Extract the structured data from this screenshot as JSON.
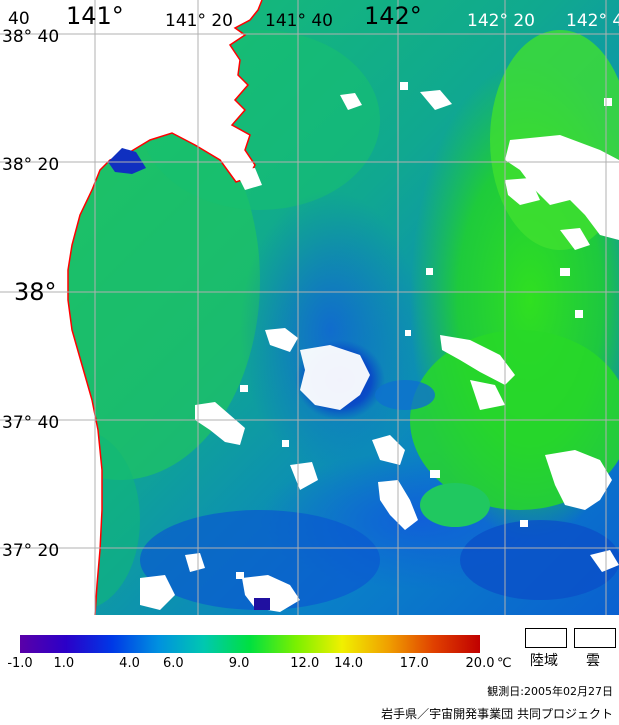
{
  "map": {
    "lon_labels": [
      "141°",
      "141° 20",
      "141° 40",
      "142°",
      "142° 20",
      "142° 4"
    ],
    "lat_labels": [
      "38° 40",
      "38° 20",
      "38°",
      "37° 40",
      "37° 20"
    ],
    "corner_label": "40",
    "colors": {
      "coastline": "#ff0000",
      "land": "#ffffff",
      "cloud": "#ffffff",
      "grid": "#b0b0b0"
    }
  },
  "colorbar": {
    "ticks": [
      "-1.0",
      "1.0",
      "4.0",
      "6.0",
      "9.0",
      "12.0",
      "14.0",
      "17.0",
      "20.0"
    ],
    "tick_values": [
      -1,
      1,
      4,
      6,
      9,
      12,
      14,
      17,
      20
    ],
    "min": -1,
    "max": 20,
    "unit": "℃",
    "colors": [
      "#5a00a8",
      "#2b00c8",
      "#0038e6",
      "#0090e0",
      "#00c8b0",
      "#00e040",
      "#7af000",
      "#f0f000",
      "#f0a000",
      "#e04000",
      "#c00000"
    ]
  },
  "legend": {
    "land": "陸域",
    "cloud": "雲"
  },
  "observation": "観測日:2005年02月27日",
  "credit": "岩手県／宇宙開発事業団 共同プロジェクト"
}
